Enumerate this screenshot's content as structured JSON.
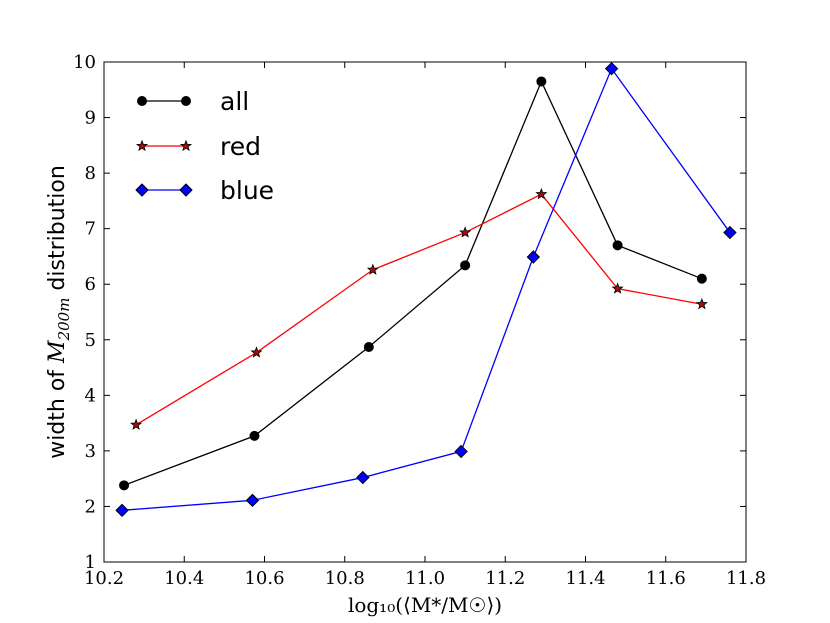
{
  "chart_data": {
    "type": "line",
    "xlabel": "log₁₀(⟨M*/M☉⟩)",
    "ylabel_parts": {
      "pre": "width of ",
      "math": "M",
      "sub": "200m",
      "post": " distribution"
    },
    "xlim": [
      10.2,
      11.8
    ],
    "ylim": [
      1,
      10
    ],
    "xticks": [
      "10.2",
      "10.4",
      "10.6",
      "10.8",
      "11.0",
      "11.2",
      "11.4",
      "11.6",
      "11.8"
    ],
    "yticks": [
      "1",
      "2",
      "3",
      "4",
      "5",
      "6",
      "7",
      "8",
      "9",
      "10"
    ],
    "legend_position": "top-left",
    "series": [
      {
        "name": "all",
        "color": "#000000",
        "marker": "circle",
        "x": [
          10.25,
          10.575,
          10.86,
          11.1,
          11.29,
          11.48,
          11.69
        ],
        "y": [
          2.38,
          3.27,
          4.87,
          6.34,
          9.65,
          6.7,
          6.1
        ]
      },
      {
        "name": "red",
        "color": "#ff0000",
        "marker": "star",
        "x": [
          10.28,
          10.58,
          10.87,
          11.1,
          11.29,
          11.48,
          11.69
        ],
        "y": [
          3.47,
          4.77,
          6.26,
          6.93,
          7.62,
          5.92,
          5.64
        ]
      },
      {
        "name": "blue",
        "color": "#0000ff",
        "marker": "diamond",
        "x": [
          10.245,
          10.57,
          10.845,
          11.09,
          11.27,
          11.465,
          11.76
        ],
        "y": [
          1.93,
          2.11,
          2.52,
          2.99,
          6.49,
          9.88,
          6.93
        ]
      }
    ]
  }
}
